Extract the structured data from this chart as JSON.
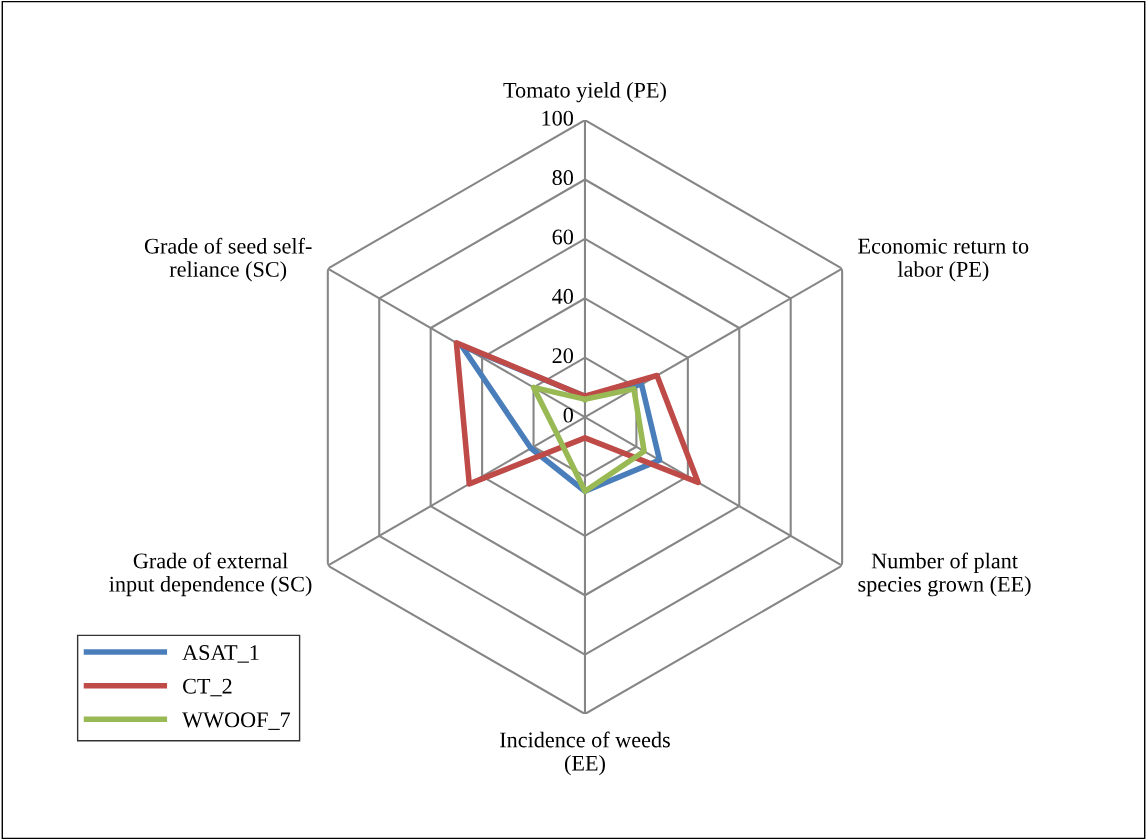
{
  "chart_data": {
    "type": "radar",
    "categories": [
      "Tomato yield (PE)",
      "Economic return to labor (PE)",
      "Number of plant species grown (EE)",
      "Incidence of weeds (EE)",
      "Grade of external input dependence (SC)",
      "Grade of seed self-reliance (SC)"
    ],
    "series": [
      {
        "name": "ASAT_1",
        "color": "#4a7ebb",
        "values": [
          7,
          22,
          29,
          25,
          21,
          48
        ]
      },
      {
        "name": "CT_2",
        "color": "#be4b48",
        "values": [
          7,
          28,
          44,
          7,
          45,
          50
        ]
      },
      {
        "name": "WWOOF_7",
        "color": "#98b954",
        "values": [
          6,
          19,
          23,
          25,
          11,
          20
        ]
      }
    ],
    "ylim": [
      0,
      100
    ],
    "yticks": [
      0,
      20,
      40,
      60,
      80,
      100
    ],
    "grid": true,
    "legend": "bottom left",
    "marker": "none",
    "line_style": "solid"
  }
}
